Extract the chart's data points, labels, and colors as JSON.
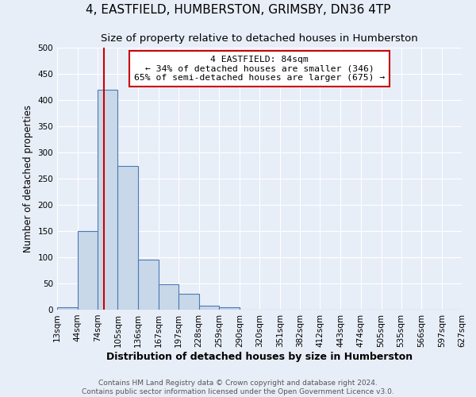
{
  "title": "4, EASTFIELD, HUMBERSTON, GRIMSBY, DN36 4TP",
  "subtitle": "Size of property relative to detached houses in Humberston",
  "xlabel": "Distribution of detached houses by size in Humberston",
  "ylabel": "Number of detached properties",
  "bin_edges": [
    13,
    44,
    74,
    105,
    136,
    167,
    197,
    228,
    259,
    290,
    320,
    351,
    382,
    412,
    443,
    474,
    505,
    535,
    566,
    597,
    627
  ],
  "bar_heights": [
    5,
    150,
    420,
    275,
    95,
    48,
    30,
    8,
    5,
    0,
    0,
    0,
    0,
    0,
    0,
    0,
    0,
    0,
    0,
    0
  ],
  "bar_color": "#c8d8e8",
  "bar_edgecolor": "#4a7ab5",
  "bar_linewidth": 0.8,
  "vline_x": 84,
  "vline_color": "#cc0000",
  "ylim": [
    0,
    500
  ],
  "yticks": [
    0,
    50,
    100,
    150,
    200,
    250,
    300,
    350,
    400,
    450,
    500
  ],
  "background_color": "#e8eef8",
  "annotation_title": "4 EASTFIELD: 84sqm",
  "annotation_line1": "← 34% of detached houses are smaller (346)",
  "annotation_line2": "65% of semi-detached houses are larger (675) →",
  "annotation_box_color": "#ffffff",
  "annotation_box_edgecolor": "#cc0000",
  "footer_line1": "Contains HM Land Registry data © Crown copyright and database right 2024.",
  "footer_line2": "Contains public sector information licensed under the Open Government Licence v3.0.",
  "title_fontsize": 11,
  "subtitle_fontsize": 9.5,
  "xlabel_fontsize": 9,
  "ylabel_fontsize": 8.5,
  "tick_fontsize": 7.5,
  "footer_fontsize": 6.5
}
